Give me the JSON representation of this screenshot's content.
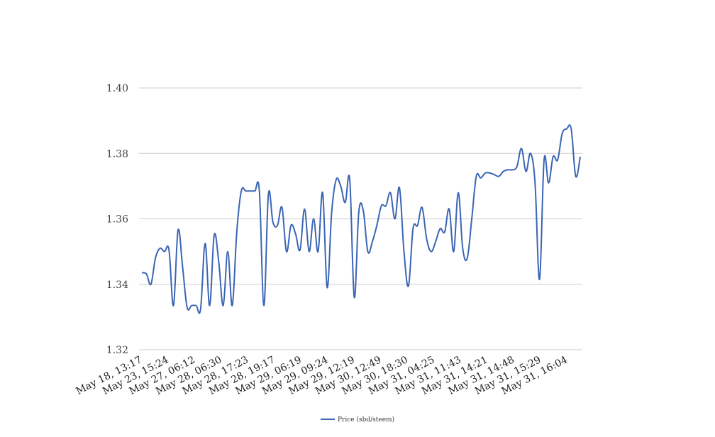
{
  "chart_data": {
    "type": "line",
    "title": "",
    "xlabel": "",
    "ylabel": "",
    "ylim": [
      1.32,
      1.4
    ],
    "y_ticks": [
      "1.32",
      "1.34",
      "1.36",
      "1.38",
      "1.40"
    ],
    "grid": true,
    "legend_position": "bottom-center",
    "x_tick_labels": [
      "May 18, 13:17",
      "May 23, 15:24",
      "May 27, 06:12",
      "May 28, 06:30",
      "May 28, 17:23",
      "May 28, 19:17",
      "May 29, 06:19",
      "May 29, 09:24",
      "May 29, 12:19",
      "May 30, 12:49",
      "May 30, 18:30",
      "May 31, 04:25",
      "May 31, 11:43",
      "May 31, 14:21",
      "May 31, 14:48",
      "May 31, 15:29",
      "May 31, 16:04"
    ],
    "series": [
      {
        "name": "Price (sbd/steem)",
        "color": "#3b65b5",
        "values": [
          1.3435,
          1.3432,
          1.34,
          1.348,
          1.351,
          1.35,
          1.3505,
          1.3335,
          1.3565,
          1.3455,
          1.333,
          1.3335,
          1.3335,
          1.3325,
          1.3525,
          1.3335,
          1.355,
          1.347,
          1.3335,
          1.35,
          1.3335,
          1.356,
          1.3685,
          1.3685,
          1.3685,
          1.3685,
          1.3685,
          1.3335,
          1.3675,
          1.359,
          1.358,
          1.3635,
          1.35,
          1.358,
          1.3555,
          1.3505,
          1.363,
          1.35,
          1.36,
          1.35,
          1.368,
          1.339,
          1.362,
          1.372,
          1.37,
          1.365,
          1.372,
          1.336,
          1.362,
          1.3625,
          1.35,
          1.353,
          1.358,
          1.364,
          1.364,
          1.368,
          1.36,
          1.3695,
          1.35,
          1.3395,
          1.357,
          1.358,
          1.3635,
          1.354,
          1.35,
          1.353,
          1.357,
          1.356,
          1.363,
          1.35,
          1.368,
          1.351,
          1.348,
          1.36,
          1.373,
          1.3725,
          1.374,
          1.374,
          1.3735,
          1.373,
          1.3745,
          1.375,
          1.375,
          1.376,
          1.3815,
          1.3745,
          1.38,
          1.371,
          1.3415,
          1.378,
          1.371,
          1.379,
          1.378,
          1.386,
          1.3875,
          1.3875,
          1.373,
          1.379
        ]
      }
    ]
  }
}
